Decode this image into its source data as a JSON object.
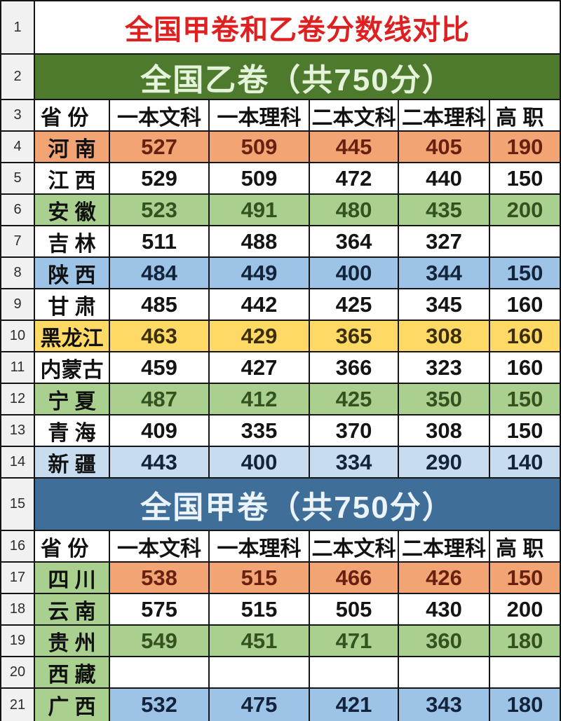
{
  "title": "全国甲卷和乙卷分数线对比",
  "columns": [
    "省  份",
    "一本文科",
    "一本理科",
    "二本文科",
    "二本理科",
    "高  职"
  ],
  "colors": {
    "title_red": "#DE2020",
    "banner_green": "#4E7A2E",
    "banner_blue": "#3F6E99",
    "row_orange": "#F2A475",
    "row_green": "#A9D08E",
    "row_blue": "#9DC3E6",
    "row_lightblue": "#C7DCEE",
    "row_yellow": "#FFD965",
    "row_number_bg": "#F1F1F1",
    "gridline": "#151515"
  },
  "rows": [
    {
      "type": "title",
      "num": "1",
      "text": "全国甲卷和乙卷分数线对比"
    },
    {
      "type": "banner",
      "num": "2",
      "text": "全国乙卷（共750分）",
      "color": "green"
    },
    {
      "type": "header",
      "num": "3",
      "cells": [
        "省  份",
        "一本文科",
        "一本理科",
        "二本文科",
        "二本理科",
        "高  职"
      ]
    },
    {
      "type": "data",
      "num": "4",
      "province": "河 南",
      "row_color": "orange",
      "values": [
        "527",
        "509",
        "445",
        "405",
        "190"
      ]
    },
    {
      "type": "data",
      "num": "5",
      "province": "江 西",
      "row_color": "white",
      "values": [
        "529",
        "509",
        "472",
        "440",
        "150"
      ]
    },
    {
      "type": "data",
      "num": "6",
      "province": "安 徽",
      "row_color": "green",
      "values": [
        "523",
        "491",
        "480",
        "435",
        "200"
      ]
    },
    {
      "type": "data",
      "num": "7",
      "province": "吉 林",
      "row_color": "white",
      "values": [
        "511",
        "488",
        "364",
        "327",
        ""
      ]
    },
    {
      "type": "data",
      "num": "8",
      "province": "陕 西",
      "row_color": "blue",
      "values": [
        "484",
        "449",
        "400",
        "344",
        "150"
      ]
    },
    {
      "type": "data",
      "num": "9",
      "province": "甘 肃",
      "row_color": "white",
      "values": [
        "485",
        "442",
        "425",
        "345",
        "160"
      ]
    },
    {
      "type": "data",
      "num": "10",
      "province": "黑龙江",
      "row_color": "yellow",
      "values": [
        "463",
        "429",
        "365",
        "308",
        "160"
      ]
    },
    {
      "type": "data",
      "num": "11",
      "province": "内蒙古",
      "row_color": "white",
      "values": [
        "459",
        "427",
        "366",
        "323",
        "160"
      ]
    },
    {
      "type": "data",
      "num": "12",
      "province": "宁 夏",
      "row_color": "green",
      "values": [
        "487",
        "412",
        "425",
        "350",
        "150"
      ]
    },
    {
      "type": "data",
      "num": "13",
      "province": "青 海",
      "row_color": "white",
      "values": [
        "409",
        "335",
        "370",
        "308",
        "150"
      ]
    },
    {
      "type": "data",
      "num": "14",
      "province": "新 疆",
      "row_color": "lightblue",
      "values": [
        "443",
        "400",
        "334",
        "290",
        "140"
      ]
    },
    {
      "type": "banner",
      "num": "15",
      "text": "全国甲卷（共750分）",
      "color": "blue"
    },
    {
      "type": "header",
      "num": "16",
      "cells": [
        "省  份",
        "一本文科",
        "一本理科",
        "二本文科",
        "二本理科",
        "高  职"
      ]
    },
    {
      "type": "data",
      "num": "17",
      "province": "四 川",
      "province_color": "green",
      "row_color": "orange",
      "values": [
        "538",
        "515",
        "466",
        "426",
        "150"
      ]
    },
    {
      "type": "data",
      "num": "18",
      "province": "云 南",
      "province_color": "green",
      "row_color": "white",
      "values": [
        "575",
        "515",
        "505",
        "430",
        "200"
      ]
    },
    {
      "type": "data",
      "num": "19",
      "province": "贵 州",
      "province_color": "green",
      "row_color": "green",
      "values": [
        "549",
        "451",
        "471",
        "360",
        "180"
      ]
    },
    {
      "type": "data",
      "num": "20",
      "province": "西 藏",
      "province_color": "green",
      "row_color": "white",
      "values": [
        "",
        "",
        "",
        "",
        ""
      ]
    },
    {
      "type": "data",
      "num": "21",
      "province": "广 西",
      "province_color": "green",
      "row_color": "blue",
      "values": [
        "532",
        "475",
        "421",
        "343",
        "180"
      ]
    }
  ],
  "chart_data": [
    {
      "type": "table",
      "title": "全国乙卷（共750分）",
      "columns": [
        "省份",
        "一本文科",
        "一本理科",
        "二本文科",
        "二本理科",
        "高职"
      ],
      "rows": [
        [
          "河南",
          527,
          509,
          445,
          405,
          190
        ],
        [
          "江西",
          529,
          509,
          472,
          440,
          150
        ],
        [
          "安徽",
          523,
          491,
          480,
          435,
          200
        ],
        [
          "吉林",
          511,
          488,
          364,
          327,
          null
        ],
        [
          "陕西",
          484,
          449,
          400,
          344,
          150
        ],
        [
          "甘肃",
          485,
          442,
          425,
          345,
          160
        ],
        [
          "黑龙江",
          463,
          429,
          365,
          308,
          160
        ],
        [
          "内蒙古",
          459,
          427,
          366,
          323,
          160
        ],
        [
          "宁夏",
          487,
          412,
          425,
          350,
          150
        ],
        [
          "青海",
          409,
          335,
          370,
          308,
          150
        ],
        [
          "新疆",
          443,
          400,
          334,
          290,
          140
        ]
      ]
    },
    {
      "type": "table",
      "title": "全国甲卷（共750分）",
      "columns": [
        "省份",
        "一本文科",
        "一本理科",
        "二本文科",
        "二本理科",
        "高职"
      ],
      "rows": [
        [
          "四川",
          538,
          515,
          466,
          426,
          150
        ],
        [
          "云南",
          575,
          515,
          505,
          430,
          200
        ],
        [
          "贵州",
          549,
          451,
          471,
          360,
          180
        ],
        [
          "西藏",
          null,
          null,
          null,
          null,
          null
        ],
        [
          "广西",
          532,
          475,
          421,
          343,
          180
        ]
      ]
    }
  ]
}
